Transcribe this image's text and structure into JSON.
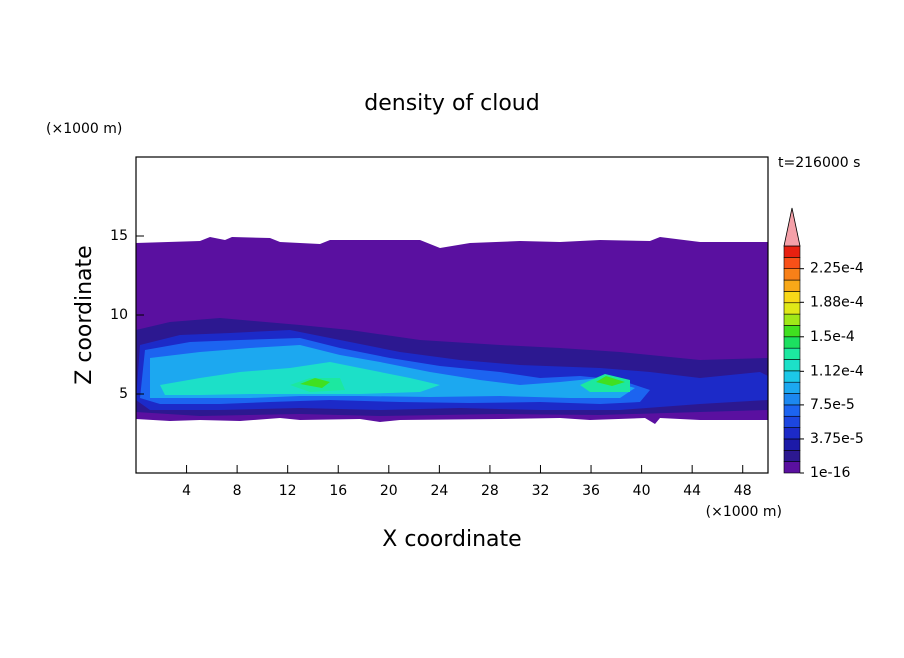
{
  "chart_data": {
    "type": "contour",
    "title": "density of cloud",
    "time_label": "t=216000 s",
    "x_label": "X coordinate",
    "y_label": "Z coordinate",
    "x_unit": "(×1000 m)",
    "y_unit": "(×1000 m)",
    "xlim": [
      0,
      50
    ],
    "ylim": [
      0,
      20
    ],
    "xticks": [
      4,
      8,
      12,
      16,
      20,
      24,
      28,
      32,
      36,
      40,
      44,
      48
    ],
    "yticks": [
      5,
      10,
      15
    ],
    "colorbar": {
      "lim": [
        1e-16,
        0.00025
      ],
      "ticks": [
        {
          "value": 1e-16,
          "label": "1e-16"
        },
        {
          "value": 3.75e-05,
          "label": "3.75e-5"
        },
        {
          "value": 7.5e-05,
          "label": "7.5e-5"
        },
        {
          "value": 0.000112,
          "label": "1.12e-4"
        },
        {
          "value": 0.00015,
          "label": "1.5e-4"
        },
        {
          "value": 0.000188,
          "label": "1.88e-4"
        },
        {
          "value": 0.000225,
          "label": "2.25e-4"
        }
      ],
      "colors": [
        "#5a10a0",
        "#2c1890",
        "#1c1aa8",
        "#1c2ac8",
        "#1c46e0",
        "#1c64f0",
        "#1c88f0",
        "#1ca8f0",
        "#1cc8e8",
        "#1ce0c8",
        "#1ce8a0",
        "#1ce060",
        "#40e020",
        "#a0e818",
        "#e0e818",
        "#f8d818",
        "#f8a818",
        "#f88018",
        "#f85018",
        "#e82010"
      ],
      "extend_color": "#f4a0a8"
    }
  }
}
